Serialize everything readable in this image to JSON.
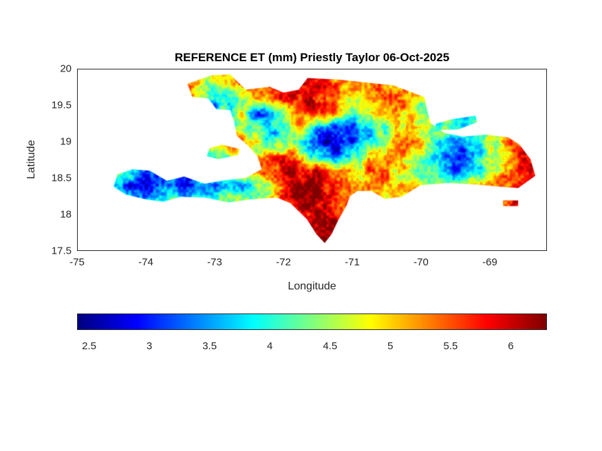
{
  "chart_data": {
    "type": "heatmap",
    "title": "REFERENCE ET (mm) Priestly Taylor 06-Oct-2025",
    "xlabel": "Longitude",
    "ylabel": "Latitude",
    "xlim": [
      -75,
      -68.17
    ],
    "ylim": [
      17.5,
      20
    ],
    "x_ticks": [
      -75,
      -74,
      -73,
      -72,
      -71,
      -70,
      -69
    ],
    "y_ticks": [
      20,
      19.5,
      19,
      18.5,
      18,
      17.5
    ],
    "colormap": "jet",
    "clim": [
      2.4,
      6.3
    ],
    "colorbar_orientation": "horizontal",
    "colorbar_ticks": [
      2.5,
      3,
      3.5,
      4,
      4.5,
      5,
      5.5,
      6
    ],
    "grid_definition": {
      "lon_start": -74.6,
      "lon_step": 0.2,
      "lat_start": 20.0,
      "lat_step": -0.2,
      "rows": 13,
      "cols": 33
    },
    "et_grid": [
      [
        null,
        null,
        null,
        null,
        null,
        null,
        null,
        null,
        null,
        null,
        null,
        null,
        null,
        null,
        null,
        null,
        null,
        null,
        null,
        null,
        null,
        null,
        null,
        null,
        null,
        null,
        null,
        null,
        null,
        null,
        null,
        null,
        null
      ],
      [
        null,
        null,
        null,
        null,
        null,
        null,
        5.6,
        5.0,
        4.4,
        5.0,
        5.5,
        5.8,
        5.7,
        5.9,
        6.0,
        5.9,
        5.7,
        5.5,
        5.4,
        5.6,
        5.5,
        5.2,
        null,
        null,
        null,
        null,
        null,
        null,
        null,
        null,
        null,
        null,
        null
      ],
      [
        null,
        null,
        null,
        null,
        null,
        null,
        5.4,
        4.6,
        3.8,
        3.4,
        4.2,
        5.0,
        5.5,
        5.8,
        6.0,
        5.8,
        5.4,
        5.0,
        4.7,
        5.0,
        5.3,
        5.5,
        5.1,
        4.6,
        null,
        null,
        null,
        null,
        null,
        null,
        null,
        null,
        null
      ],
      [
        null,
        null,
        null,
        null,
        null,
        null,
        5.0,
        4.2,
        3.7,
        4.3,
        4.8,
        3.2,
        3.5,
        4.6,
        5.4,
        6.0,
        5.7,
        5.0,
        4.3,
        4.7,
        5.2,
        5.4,
        5.0,
        4.4,
        4.1,
        null,
        null,
        null,
        null,
        null,
        null,
        null,
        null
      ],
      [
        null,
        null,
        null,
        null,
        null,
        null,
        null,
        5.0,
        4.7,
        4.1,
        4.5,
        4.1,
        3.7,
        4.1,
        4.9,
        4.3,
        3.3,
        2.9,
        3.1,
        3.5,
        4.1,
        4.7,
        5.0,
        4.8,
        4.3,
        4.0,
        3.9,
        4.2,
        null,
        null,
        null,
        null,
        null
      ],
      [
        null,
        null,
        null,
        null,
        null,
        null,
        null,
        null,
        null,
        5.7,
        5.2,
        4.5,
        4.0,
        4.4,
        4.3,
        3.5,
        2.7,
        2.5,
        3.0,
        3.6,
        4.2,
        4.8,
        5.1,
        5.0,
        4.3,
        3.7,
        3.3,
        3.8,
        4.5,
        5.1,
        5.5,
        null,
        null
      ],
      [
        null,
        null,
        null,
        null,
        null,
        null,
        null,
        4.0,
        4.3,
        4.4,
        null,
        4.7,
        5.1,
        5.5,
        5.1,
        4.1,
        3.3,
        3.1,
        3.7,
        4.5,
        5.1,
        5.4,
        5.2,
        4.6,
        3.8,
        3.1,
        2.9,
        3.5,
        4.3,
        5.0,
        5.7,
        5.9,
        null
      ],
      [
        null,
        4.4,
        3.9,
        3.4,
        3.1,
        3.5,
        3.9,
        4.2,
        4.4,
        4.7,
        5.0,
        5.3,
        5.7,
        5.9,
        6.1,
        5.9,
        5.6,
        5.1,
        4.8,
        5.3,
        5.5,
        5.2,
        4.8,
        4.4,
        4.0,
        3.6,
        3.4,
        3.9,
        4.5,
        5.1,
        5.6,
        6.0,
        5.8
      ],
      [
        null,
        3.6,
        2.9,
        2.6,
        3.0,
        3.3,
        2.8,
        3.4,
        3.1,
        3.7,
        3.3,
        3.9,
        4.7,
        5.7,
        6.2,
        6.0,
        5.8,
        5.4,
        5.0,
        5.2,
        5.3,
        5.0,
        4.8,
        5.0,
        4.7,
        4.5,
        4.6,
        4.8,
        5.1,
        5.3,
        5.7,
        6.1,
        5.9
      ],
      [
        null,
        4.2,
        3.8,
        3.5,
        3.9,
        4.2,
        4.0,
        3.7,
        4.1,
        4.4,
        4.2,
        4.7,
        5.1,
        5.5,
        5.9,
        6.1,
        5.9,
        5.6,
        5.3,
        null,
        null,
        null,
        null,
        null,
        null,
        null,
        null,
        null,
        null,
        null,
        null,
        null,
        null
      ],
      [
        null,
        null,
        null,
        null,
        null,
        null,
        null,
        null,
        null,
        null,
        null,
        null,
        null,
        null,
        5.7,
        6.0,
        6.2,
        5.8,
        null,
        null,
        null,
        null,
        null,
        null,
        null,
        null,
        null,
        null,
        null,
        null,
        null,
        null,
        null
      ],
      [
        null,
        null,
        null,
        null,
        null,
        null,
        null,
        null,
        null,
        null,
        null,
        null,
        null,
        null,
        null,
        6.0,
        6.2,
        null,
        null,
        null,
        null,
        null,
        null,
        null,
        null,
        null,
        null,
        null,
        null,
        null,
        null,
        null,
        null
      ],
      [
        null,
        null,
        null,
        null,
        null,
        null,
        null,
        null,
        null,
        null,
        null,
        null,
        null,
        null,
        null,
        null,
        6.1,
        null,
        null,
        null,
        null,
        null,
        null,
        null,
        null,
        null,
        null,
        null,
        null,
        null,
        null,
        null,
        null
      ]
    ],
    "region_outlines": {
      "hispaniola_main": [
        [
          -74.48,
          18.38
        ],
        [
          -74.3,
          18.27
        ],
        [
          -74.0,
          18.2
        ],
        [
          -73.75,
          18.17
        ],
        [
          -73.5,
          18.24
        ],
        [
          -73.15,
          18.23
        ],
        [
          -72.8,
          18.16
        ],
        [
          -72.5,
          18.2
        ],
        [
          -72.1,
          18.23
        ],
        [
          -71.9,
          18.15
        ],
        [
          -71.78,
          18.04
        ],
        [
          -71.66,
          17.93
        ],
        [
          -71.52,
          17.72
        ],
        [
          -71.4,
          17.6
        ],
        [
          -71.3,
          17.72
        ],
        [
          -71.2,
          17.92
        ],
        [
          -71.08,
          18.12
        ],
        [
          -71.03,
          18.25
        ],
        [
          -70.92,
          18.32
        ],
        [
          -70.72,
          18.32
        ],
        [
          -70.52,
          18.21
        ],
        [
          -70.28,
          18.24
        ],
        [
          -70.0,
          18.4
        ],
        [
          -69.6,
          18.43
        ],
        [
          -69.2,
          18.41
        ],
        [
          -68.85,
          18.38
        ],
        [
          -68.58,
          18.36
        ],
        [
          -68.33,
          18.53
        ],
        [
          -68.4,
          18.76
        ],
        [
          -68.56,
          18.96
        ],
        [
          -68.72,
          19.06
        ],
        [
          -69.05,
          19.1
        ],
        [
          -69.38,
          19.07
        ],
        [
          -69.65,
          19.12
        ],
        [
          -69.86,
          19.26
        ],
        [
          -69.95,
          19.62
        ],
        [
          -70.4,
          19.78
        ],
        [
          -70.8,
          19.82
        ],
        [
          -71.2,
          19.86
        ],
        [
          -71.65,
          19.88
        ],
        [
          -71.78,
          19.72
        ],
        [
          -72.0,
          19.68
        ],
        [
          -72.2,
          19.76
        ],
        [
          -72.55,
          19.72
        ],
        [
          -72.78,
          19.93
        ],
        [
          -73.05,
          19.92
        ],
        [
          -73.4,
          19.8
        ],
        [
          -73.33,
          19.62
        ],
        [
          -73.1,
          19.6
        ],
        [
          -72.98,
          19.45
        ],
        [
          -72.78,
          19.44
        ],
        [
          -72.72,
          19.28
        ],
        [
          -72.68,
          19.08
        ],
        [
          -72.52,
          18.95
        ],
        [
          -72.38,
          18.8
        ],
        [
          -72.32,
          18.62
        ],
        [
          -72.55,
          18.5
        ],
        [
          -72.85,
          18.47
        ],
        [
          -73.15,
          18.42
        ],
        [
          -73.45,
          18.52
        ],
        [
          -73.7,
          18.46
        ],
        [
          -73.95,
          18.6
        ],
        [
          -74.2,
          18.62
        ],
        [
          -74.42,
          18.55
        ]
      ],
      "gonave": [
        [
          -73.12,
          18.8
        ],
        [
          -72.95,
          18.76
        ],
        [
          -72.66,
          18.82
        ],
        [
          -72.64,
          18.9
        ],
        [
          -72.9,
          18.96
        ],
        [
          -73.08,
          18.91
        ]
      ],
      "samana": [
        [
          -69.8,
          19.16
        ],
        [
          -69.45,
          19.17
        ],
        [
          -69.18,
          19.27
        ],
        [
          -69.2,
          19.36
        ],
        [
          -69.55,
          19.31
        ],
        [
          -69.78,
          19.25
        ]
      ],
      "saona": [
        [
          -68.8,
          18.11
        ],
        [
          -68.58,
          18.11
        ],
        [
          -68.58,
          18.19
        ],
        [
          -68.8,
          18.19
        ]
      ]
    }
  }
}
